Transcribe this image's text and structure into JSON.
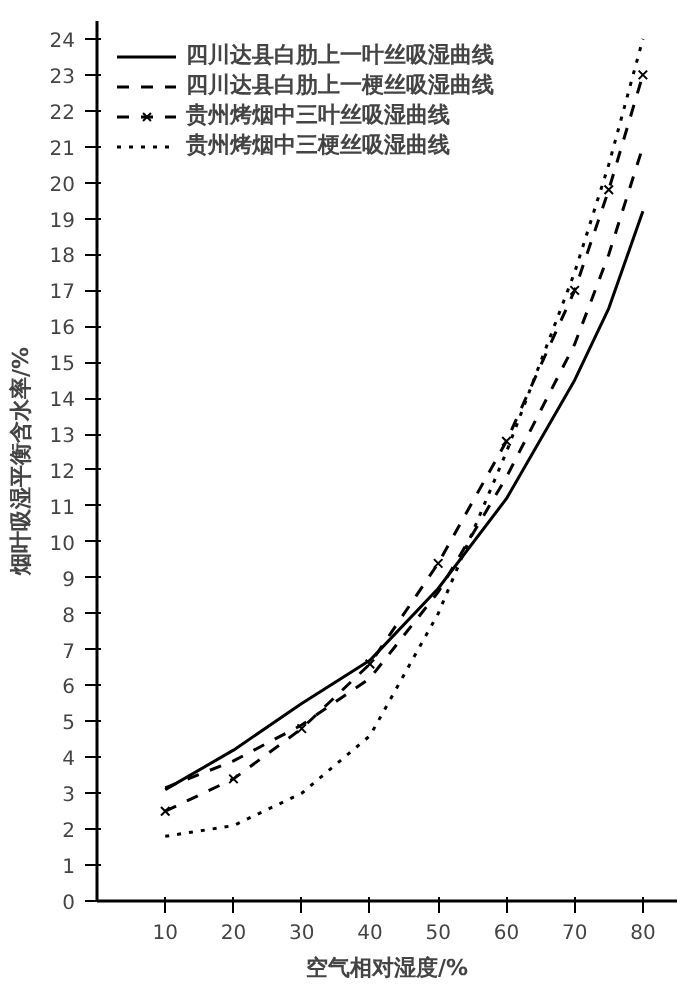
{
  "chart_data": {
    "type": "line",
    "xlabel": "空气相对湿度/%",
    "ylabel": "烟叶吸湿平衡含水率/%",
    "x": [
      10,
      20,
      30,
      40,
      50,
      60,
      70,
      75,
      80
    ],
    "series": [
      {
        "name": "四川达县白肋上一叶丝吸湿曲线",
        "color": "#000000",
        "line_style": "solid",
        "marker": "none",
        "values": [
          3.1,
          4.2,
          5.5,
          6.7,
          8.7,
          11.2,
          14.5,
          16.5,
          19.2
        ]
      },
      {
        "name": "四川达县白肋上一梗丝吸湿曲线",
        "color": "#000000",
        "line_style": "dashed",
        "marker": "none",
        "values": [
          3.15,
          3.9,
          4.9,
          6.2,
          8.6,
          11.8,
          15.5,
          18,
          21
        ]
      },
      {
        "name": "贵州烤烟中三叶丝吸湿曲线",
        "color": "#000000",
        "line_style": "dashed",
        "marker": "cross",
        "values": [
          2.5,
          3.4,
          4.8,
          6.6,
          9.4,
          12.8,
          17,
          19.8,
          23
        ]
      },
      {
        "name": "贵州烤烟中三梗丝吸湿曲线",
        "color": "#000000",
        "line_style": "dotted",
        "marker": "none",
        "values": [
          1.8,
          2.1,
          3.0,
          4.6,
          8.0,
          12.5,
          17.5,
          20.5,
          24
        ]
      }
    ],
    "xlim": [
      0,
      85
    ],
    "ylim": [
      0,
      24.5
    ],
    "xticks": [
      10,
      20,
      30,
      40,
      50,
      60,
      70,
      80
    ],
    "yticks": [
      0,
      1,
      2,
      3,
      4,
      5,
      6,
      7,
      8,
      9,
      10,
      11,
      12,
      13,
      14,
      15,
      16,
      17,
      18,
      19,
      20,
      21,
      22,
      23,
      24
    ],
    "grid": false,
    "legend": "top left"
  }
}
